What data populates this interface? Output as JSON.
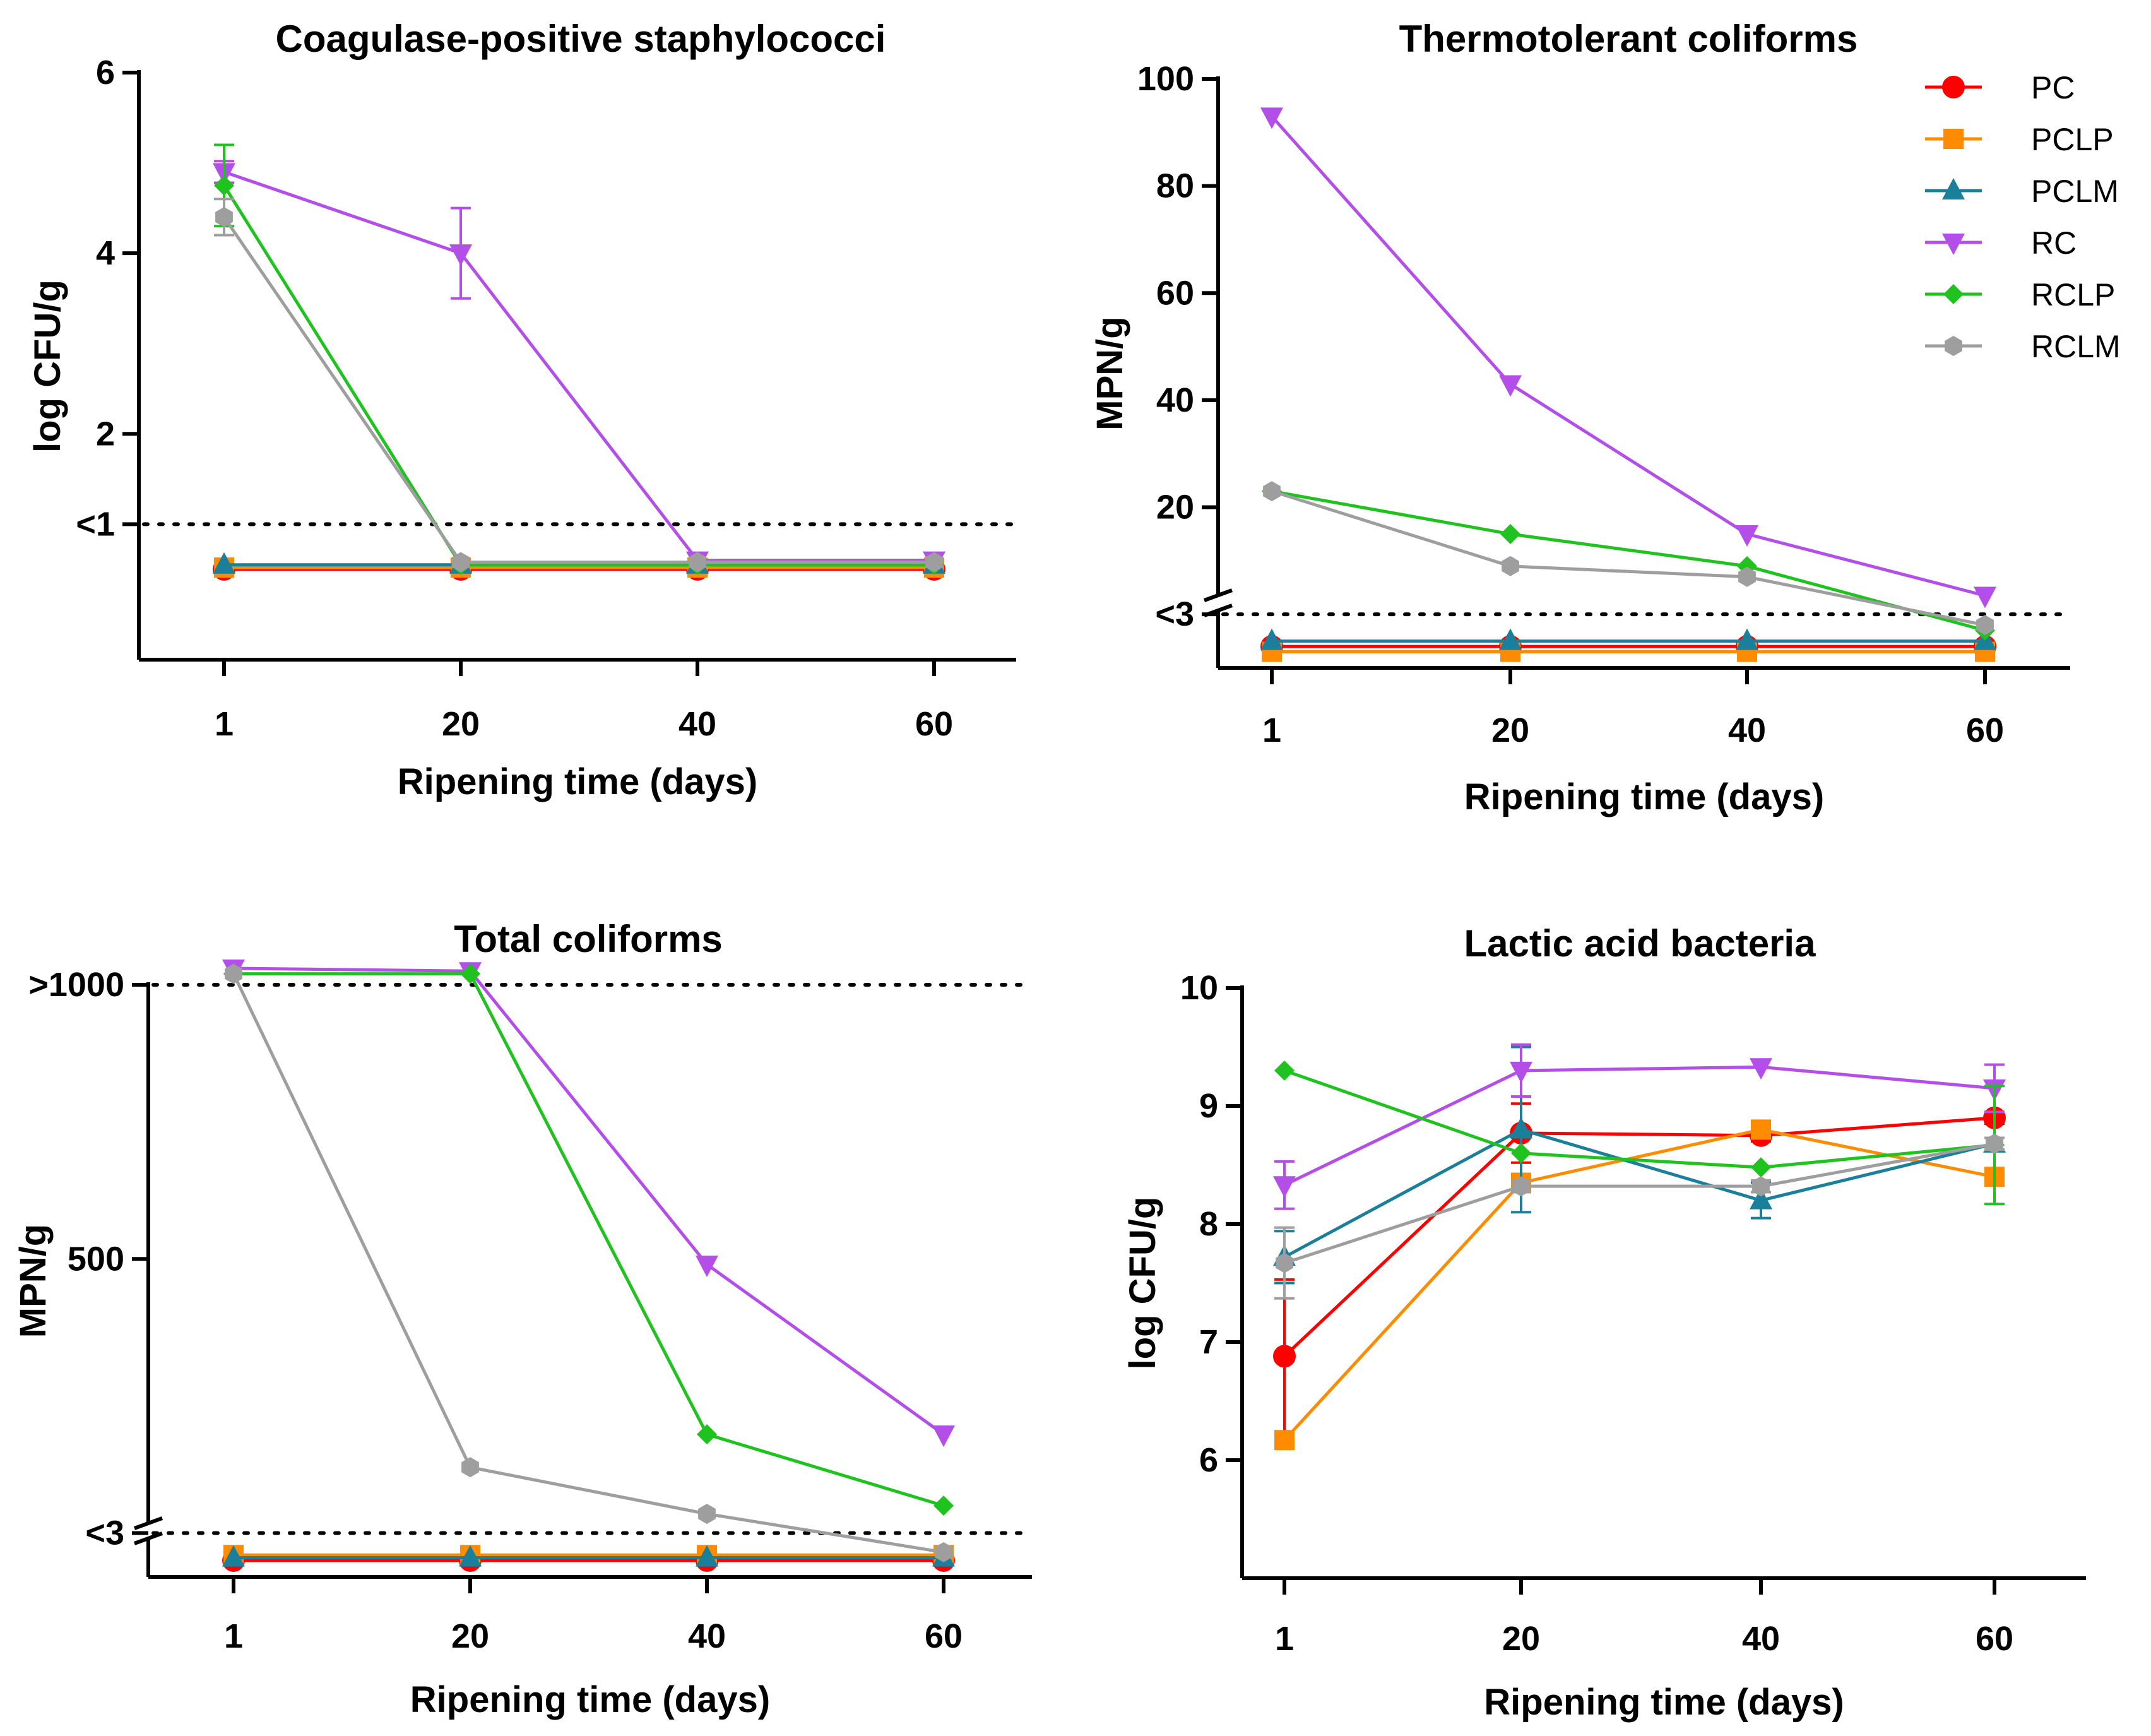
{
  "legend": [
    {
      "name": "PC",
      "color": "#ff0000",
      "marker": "circle"
    },
    {
      "name": "PCLP",
      "color": "#ff8c00",
      "marker": "square"
    },
    {
      "name": "PCLM",
      "color": "#1a7f9a",
      "marker": "triangle-up"
    },
    {
      "name": "RC",
      "color": "#b44ee8",
      "marker": "triangle-down"
    },
    {
      "name": "RCLP",
      "color": "#1fc21f",
      "marker": "diamond"
    },
    {
      "name": "RCLM",
      "color": "#9e9e9e",
      "marker": "hexagon"
    }
  ],
  "chart_data": [
    {
      "type": "line",
      "title": "Coagulase-positive staphylococci",
      "xlabel": "Ripening time (days)",
      "ylabel": "log CFU/g",
      "categories": [
        "1",
        "20",
        "40",
        "60"
      ],
      "ylim": [
        -0.5,
        6
      ],
      "yticks": [
        {
          "value": 2,
          "label": "2"
        },
        {
          "value": 4,
          "label": "4"
        },
        {
          "value": 6,
          "label": "6"
        }
      ],
      "reference_line": {
        "value": 1,
        "label": "<1"
      },
      "series": [
        {
          "name": "PC",
          "values": [
            0.5,
            0.5,
            0.5,
            0.5
          ]
        },
        {
          "name": "PCLP",
          "values": [
            0.52,
            0.52,
            0.52,
            0.52
          ]
        },
        {
          "name": "PCLM",
          "values": [
            0.55,
            0.55,
            0.55,
            0.55
          ]
        },
        {
          "name": "RC",
          "values": [
            4.9,
            4.0,
            0.6,
            0.6
          ],
          "errors": [
            0.12,
            0.5,
            0,
            0
          ]
        },
        {
          "name": "RCLP",
          "values": [
            4.75,
            0.55,
            0.55,
            0.55
          ],
          "errors": [
            0.45,
            0,
            0,
            0
          ]
        },
        {
          "name": "RCLM",
          "values": [
            4.4,
            0.58,
            0.58,
            0.58
          ],
          "errors": [
            0.2,
            0,
            0,
            0
          ]
        }
      ]
    },
    {
      "type": "line",
      "title": "Thermotolerant coliforms",
      "xlabel": "Ripening time (days)",
      "ylabel": "MPN/g",
      "categories": [
        "1",
        "20",
        "40",
        "60"
      ],
      "ylim": [
        -10,
        100
      ],
      "yticks": [
        {
          "value": 20,
          "label": "20"
        },
        {
          "value": 40,
          "label": "40"
        },
        {
          "value": 60,
          "label": "60"
        },
        {
          "value": 80,
          "label": "80"
        },
        {
          "value": 100,
          "label": "100"
        }
      ],
      "reference_line": {
        "value": 0,
        "label": "<3"
      },
      "series": [
        {
          "name": "PC",
          "values": [
            -6,
            -6,
            -6,
            -6
          ]
        },
        {
          "name": "PCLP",
          "values": [
            -7,
            -7,
            -7,
            -7
          ]
        },
        {
          "name": "PCLM",
          "values": [
            -5,
            -5,
            -5,
            -5
          ]
        },
        {
          "name": "RC",
          "values": [
            93,
            43,
            15,
            3.5
          ]
        },
        {
          "name": "RCLP",
          "values": [
            23,
            15,
            9,
            -3
          ]
        },
        {
          "name": "RCLM",
          "values": [
            23,
            9,
            7,
            -2
          ]
        }
      ]
    },
    {
      "type": "line",
      "title": "Total coliforms",
      "xlabel": "Ripening time (days)",
      "ylabel": "MPN/g",
      "categories": [
        "1",
        "20",
        "40",
        "60"
      ],
      "ylim": [
        -80,
        1040
      ],
      "yticks": [
        {
          "value": 500,
          "label": "500"
        },
        {
          "value": 1000,
          "label": ">1000"
        }
      ],
      "reference_line": {
        "value": 1000,
        "label": ""
      },
      "reference_line_2": {
        "value": 0,
        "label": "<3"
      },
      "series": [
        {
          "name": "PC",
          "values": [
            -50,
            -50,
            -50,
            -50
          ]
        },
        {
          "name": "PCLP",
          "values": [
            -40,
            -40,
            -40,
            -40
          ]
        },
        {
          "name": "PCLM",
          "values": [
            -45,
            -45,
            -45,
            -45
          ]
        },
        {
          "name": "RC",
          "values": [
            1030,
            1025,
            490,
            180
          ]
        },
        {
          "name": "RCLP",
          "values": [
            1020,
            1020,
            180,
            50
          ]
        },
        {
          "name": "RCLM",
          "values": [
            1020,
            120,
            35,
            -35
          ]
        }
      ]
    },
    {
      "type": "line",
      "title": "Lactic acid bacteria",
      "xlabel": "Ripening time (days)",
      "ylabel": "log CFU/g",
      "categories": [
        "1",
        "20",
        "40",
        "60"
      ],
      "ylim": [
        5,
        10
      ],
      "yticks": [
        {
          "value": 6,
          "label": "6"
        },
        {
          "value": 7,
          "label": "7"
        },
        {
          "value": 8,
          "label": "8"
        },
        {
          "value": 9,
          "label": "9"
        },
        {
          "value": 10,
          "label": "10"
        }
      ],
      "series": [
        {
          "name": "PC",
          "values": [
            6.88,
            8.77,
            8.75,
            8.9
          ],
          "errors": [
            0.65,
            0.25,
            0.05,
            0.05
          ]
        },
        {
          "name": "PCLP",
          "values": [
            6.17,
            8.35,
            8.8,
            8.4
          ],
          "errors": [
            0,
            0.05,
            0.05,
            0
          ]
        },
        {
          "name": "PCLM",
          "values": [
            7.72,
            8.8,
            8.2,
            8.68
          ],
          "errors": [
            0.22,
            0.7,
            0.15,
            0.05
          ]
        },
        {
          "name": "RC",
          "values": [
            8.33,
            9.3,
            9.33,
            9.15
          ],
          "errors": [
            0.2,
            0.22,
            0,
            0.2
          ]
        },
        {
          "name": "RCLP",
          "values": [
            9.3,
            8.6,
            8.48,
            8.67
          ],
          "errors": [
            0,
            0,
            0,
            0.5
          ]
        },
        {
          "name": "RCLM",
          "values": [
            7.67,
            8.32,
            8.32,
            8.68
          ],
          "errors": [
            0.3,
            0.05,
            0.05,
            0.05
          ]
        }
      ]
    }
  ]
}
